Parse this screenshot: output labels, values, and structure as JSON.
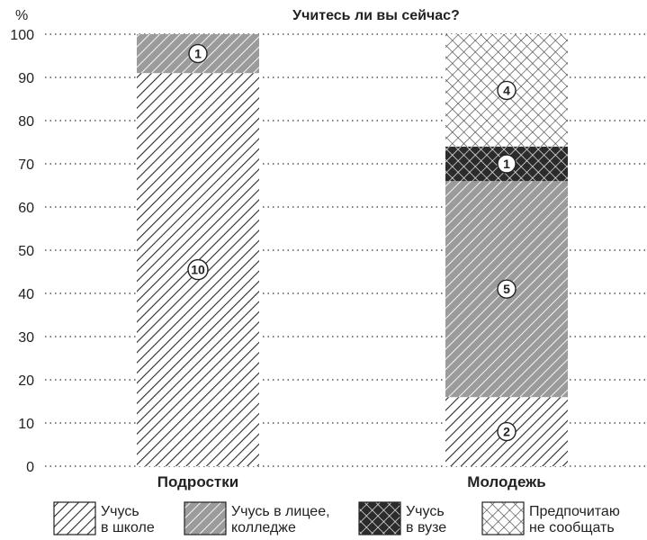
{
  "chart_data": {
    "type": "bar",
    "stacked": true,
    "title": "Учитесь ли вы сейчас?",
    "ylabel": "%",
    "ylim": [
      0,
      100
    ],
    "yticks": [
      0,
      10,
      20,
      30,
      40,
      50,
      60,
      70,
      80,
      90,
      100
    ],
    "grid": true,
    "categories": [
      "Подростки",
      "Молодежь"
    ],
    "series": [
      {
        "name": "Учусь\nв школе",
        "pattern": "hatch-light",
        "values": [
          91,
          16
        ],
        "counts": [
          "10",
          "2"
        ]
      },
      {
        "name": "Учусь в лицее,\nколледже",
        "pattern": "hatch-gray",
        "values": [
          9,
          50
        ],
        "counts": [
          "1",
          "5"
        ]
      },
      {
        "name": "Учусь\nв вузе",
        "pattern": "crosshatch-dark",
        "values": [
          0,
          8
        ],
        "counts": [
          "",
          "1"
        ]
      },
      {
        "name": "Предпочитаю\nне сообщать",
        "pattern": "crosshatch-light",
        "values": [
          0,
          26
        ],
        "counts": [
          "",
          "4"
        ]
      }
    ],
    "legend_position": "bottom"
  }
}
